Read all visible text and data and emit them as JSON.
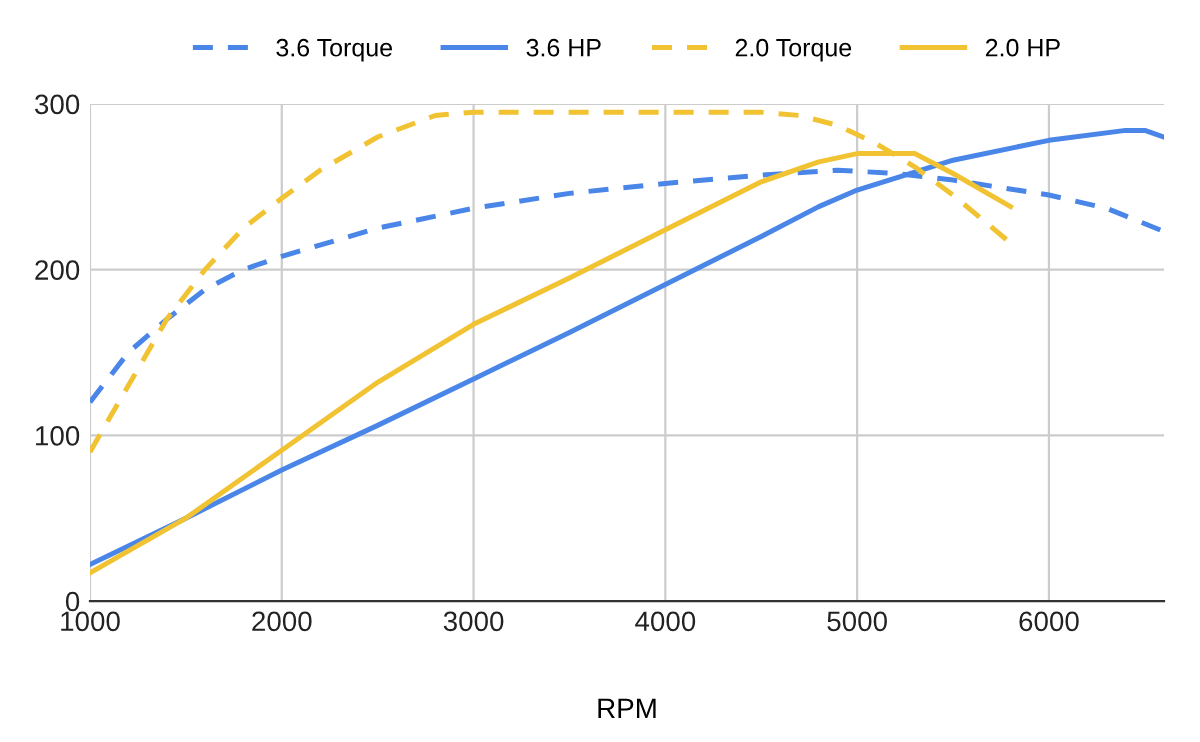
{
  "chart_data": {
    "type": "line",
    "xlabel": "RPM",
    "xlim": [
      1000,
      6600
    ],
    "xticks": [
      1000,
      2000,
      3000,
      4000,
      5000,
      6000
    ],
    "ylim": [
      0,
      300
    ],
    "yticks": [
      0,
      100,
      200,
      300
    ],
    "grid": true,
    "legend": "top",
    "marker": "none",
    "series": [
      {
        "name": "3.6 Torque",
        "color": "#4a86e8",
        "line_style": "dashed",
        "x": [
          1000,
          1200,
          1400,
          1600,
          1800,
          2000,
          2500,
          3000,
          3500,
          4000,
          4500,
          4900,
          5200,
          5500,
          6000,
          6300,
          6600
        ],
        "values": [
          120,
          150,
          170,
          188,
          200,
          208,
          225,
          237,
          246,
          252,
          257,
          260,
          258,
          254,
          245,
          237,
          223
        ]
      },
      {
        "name": "3.6 HP",
        "color": "#4a86e8",
        "line_style": "solid",
        "x": [
          1000,
          1500,
          2000,
          2500,
          3000,
          3500,
          4000,
          4500,
          4800,
          5000,
          5500,
          6000,
          6400,
          6500,
          6600
        ],
        "values": [
          22,
          50,
          79,
          106,
          134,
          162,
          191,
          220,
          238,
          248,
          266,
          278,
          284,
          284,
          280
        ]
      },
      {
        "name": "2.0 Torque",
        "color": "#f1c232",
        "line_style": "dashed",
        "x": [
          1000,
          1200,
          1400,
          1600,
          1800,
          2000,
          2200,
          2500,
          2800,
          3000,
          4500,
          4700,
          4900,
          5100,
          5300,
          5500,
          5800
        ],
        "values": [
          90,
          130,
          170,
          200,
          225,
          243,
          260,
          280,
          293,
          295,
          295,
          293,
          287,
          276,
          262,
          245,
          216
        ]
      },
      {
        "name": "2.0 HP",
        "color": "#f1c232",
        "line_style": "solid",
        "x": [
          1000,
          1500,
          2000,
          2500,
          3000,
          3500,
          4000,
          4500,
          4800,
          5000,
          5300,
          5500,
          5800
        ],
        "values": [
          17,
          50,
          91,
          132,
          167,
          195,
          224,
          253,
          265,
          270,
          270,
          258,
          238
        ]
      }
    ]
  }
}
